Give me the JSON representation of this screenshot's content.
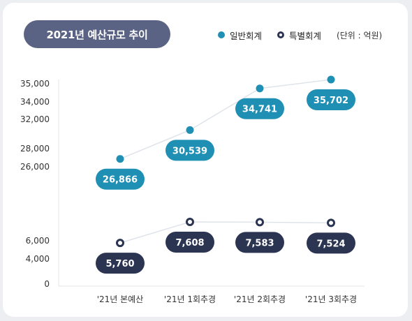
{
  "title": "2021년 예산규모 추이",
  "legend": {
    "general": "일반회계",
    "special": "특별회계",
    "unit": "(단위 : 억원)"
  },
  "colors": {
    "general": "#1f8fb4",
    "special": "#2b3552",
    "title_bg": "#5a6384",
    "line": "#dfe3ea"
  },
  "chart_data": {
    "type": "line",
    "title": "2021년 예산규모 추이",
    "unit": "억원",
    "categories": [
      "'21년 본예산",
      "'21년 1회추경",
      "'21년 2회추경",
      "'21년 3회추경"
    ],
    "y_ticks": [
      0,
      4000,
      6000,
      26000,
      28000,
      32000,
      34000,
      35000
    ],
    "y_tick_labels": [
      "0",
      "4,000",
      "6,000",
      "26,000",
      "28,000",
      "32,000",
      "34,000",
      "35,000"
    ],
    "y_axis_break": true,
    "series": [
      {
        "name": "일반회계",
        "values": [
          26866,
          30539,
          34741,
          35702
        ],
        "labels": [
          "26,866",
          "30,539",
          "34,741",
          "35,702"
        ]
      },
      {
        "name": "특별회계",
        "values": [
          5760,
          7608,
          7583,
          7524
        ],
        "labels": [
          "5,760",
          "7,608",
          "7,583",
          "7,524"
        ]
      }
    ],
    "legend_position": "top-right",
    "grid": false
  }
}
